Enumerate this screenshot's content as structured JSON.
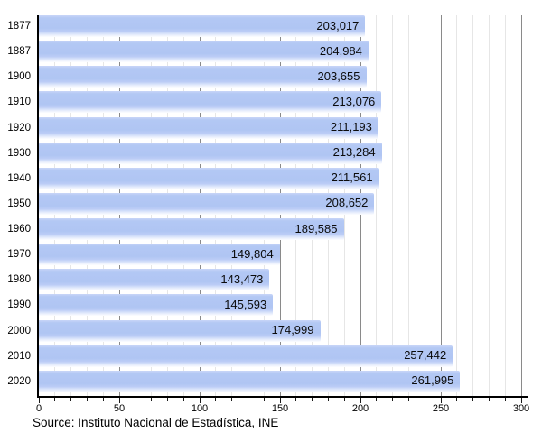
{
  "chart_data": {
    "type": "bar",
    "orientation": "horizontal",
    "title": "",
    "xlabel": "",
    "ylabel": "",
    "categories": [
      "1877",
      "1887",
      "1900",
      "1910",
      "1920",
      "1930",
      "1940",
      "1950",
      "1960",
      "1970",
      "1980",
      "1990",
      "2000",
      "2010",
      "2020"
    ],
    "values": [
      203017,
      204984,
      203655,
      213076,
      211193,
      213284,
      211561,
      208652,
      189585,
      149804,
      143473,
      145593,
      174999,
      257442,
      261995
    ],
    "value_labels": [
      "203,017",
      "204,984",
      "203,655",
      "213,076",
      "211,193",
      "213,284",
      "211,561",
      "208,652",
      "189,585",
      "149,804",
      "143,473",
      "145,593",
      "174,999",
      "257,442",
      "261,995"
    ],
    "xlim": [
      0,
      300
    ],
    "x_axis_unit": "thousands",
    "x_major_ticks": [
      0,
      50,
      100,
      150,
      200,
      250,
      300
    ],
    "x_major_tick_labels": [
      "0",
      "50",
      "100",
      "150",
      "200",
      "250",
      "300"
    ],
    "x_minor_tick_step": 10,
    "grid": true,
    "legend": "none",
    "bar_color": "#b0c5f3",
    "gridline_minor_color": "#e6e6e6",
    "gridline_major_color": "#8a8a8a",
    "axis_color": "#000000",
    "source": "Source: Instituto Nacional de Estadística, INE"
  }
}
